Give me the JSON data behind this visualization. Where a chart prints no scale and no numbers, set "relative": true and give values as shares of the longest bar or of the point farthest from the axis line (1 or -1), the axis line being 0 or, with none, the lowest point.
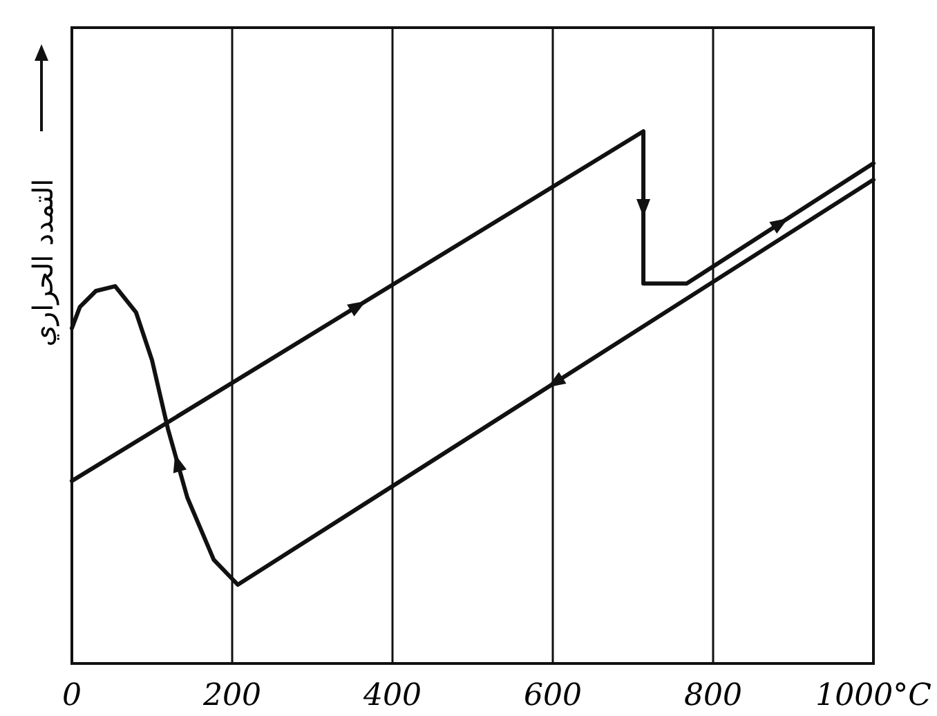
{
  "chart_data": {
    "type": "line",
    "ylabel": "التمدد الحراري",
    "relative": true,
    "grid": "x",
    "marker": "none",
    "line_style": "solid",
    "tick_labels": "x",
    "xlim": [
      0,
      1000
    ],
    "xticks": [
      0,
      200,
      400,
      600,
      800,
      {
        "value": 1000,
        "label": "1000°C"
      }
    ],
    "series": [
      {
        "color": "#111111",
        "x": [
          0,
          713,
          713,
          767,
          1000
        ],
        "values": [
          0.343,
          1.0,
          0.714,
          0.714,
          0.94
        ]
      },
      {
        "color": "#111111",
        "x": [
          1000,
          207,
          177,
          144,
          120,
          100,
          80,
          54,
          30,
          10,
          0
        ],
        "values": [
          0.909,
          0.148,
          0.195,
          0.312,
          0.44,
          0.57,
          0.66,
          0.709,
          0.7,
          0.67,
          0.63
        ]
      }
    ]
  }
}
